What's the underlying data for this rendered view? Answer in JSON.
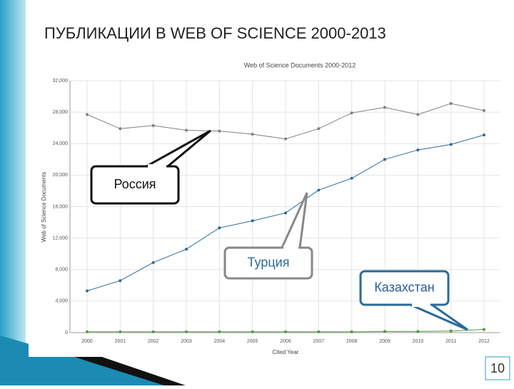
{
  "chart_data": {
    "type": "line",
    "slide_title": "ПУБЛИКАЦИИ В WEB OF SCIENCE 2000-2013",
    "title": "Web of Science Documents 2000-2012",
    "y_label": "Web of Science Documents",
    "x_label": "Cited Year",
    "slide_number": "10",
    "categories": [
      "2000",
      "2001",
      "2002",
      "2003",
      "2004",
      "2005",
      "2006",
      "2007",
      "2008",
      "2009",
      "2010",
      "2011",
      "2012"
    ],
    "series": [
      {
        "name": "Россия",
        "color": "#808080",
        "values": [
          27700,
          25900,
          26300,
          25700,
          25600,
          25200,
          24600,
          25900,
          27900,
          28600,
          27700,
          29100,
          28200
        ]
      },
      {
        "name": "Турция",
        "color": "#2a6a9a",
        "values": [
          5300,
          6600,
          8900,
          10600,
          13300,
          14200,
          15200,
          18100,
          19600,
          22000,
          23200,
          23900,
          25100
        ]
      },
      {
        "name": "Казахстан",
        "color": "#4f9a3c",
        "values": [
          100,
          100,
          100,
          100,
          100,
          100,
          100,
          100,
          100,
          150,
          150,
          200,
          400
        ]
      }
    ],
    "ylim": [
      0,
      32000
    ],
    "yticks": [
      0,
      {
        "value": 4000,
        "label": "4,000"
      },
      {
        "value": 8000,
        "label": "8,000"
      },
      {
        "value": 12000,
        "label": "12,000"
      },
      {
        "value": 16000,
        "label": "16,000"
      },
      {
        "value": 20000,
        "label": "20,000"
      },
      {
        "value": 24000,
        "label": "24,000"
      },
      {
        "value": 28000,
        "label": "28,000"
      },
      {
        "value": 32000,
        "label": "32,000"
      }
    ],
    "grid": true
  }
}
